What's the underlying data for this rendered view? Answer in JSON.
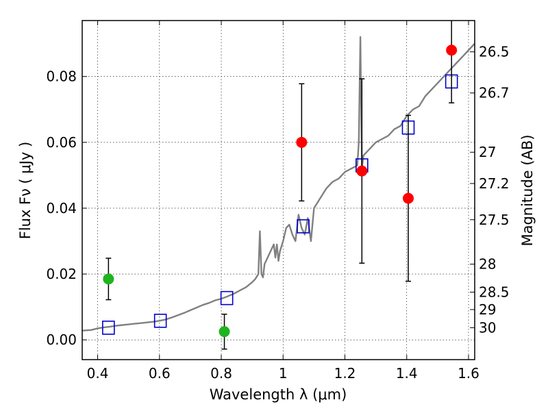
{
  "chart_data": {
    "type": "scatter",
    "xlabel": "Wavelength  λ (μm)",
    "ylabel": "Flux  Fν  ( μJy )",
    "ylabel_right": "Magnitude (AB)",
    "xlim": [
      0.35,
      1.62
    ],
    "ylim": [
      -0.006,
      0.097
    ],
    "grid": true,
    "x_ticks": [
      0.4,
      0.6,
      0.8,
      1.0,
      1.2,
      1.4,
      1.6
    ],
    "x_tick_labels": [
      "0.4",
      "0.6",
      "0.8",
      "1",
      "1.2",
      "1.4",
      "1.6"
    ],
    "y_ticks": [
      0.0,
      0.02,
      0.04,
      0.06,
      0.08
    ],
    "y_tick_labels": [
      "0.00",
      "0.02",
      "0.04",
      "0.06",
      "0.08"
    ],
    "right_ticks": [
      {
        "label": "26.5",
        "flux": 0.0875
      },
      {
        "label": "26.7",
        "flux": 0.075
      },
      {
        "label": "27",
        "flux": 0.057
      },
      {
        "label": "27.2",
        "flux": 0.0475
      },
      {
        "label": "27.5",
        "flux": 0.0365
      },
      {
        "label": "28",
        "flux": 0.023
      },
      {
        "label": "28.5",
        "flux": 0.0145
      },
      {
        "label": "29",
        "flux": 0.0092
      },
      {
        "label": "30",
        "flux": 0.0037
      }
    ],
    "series": [
      {
        "kind": "line",
        "color": "#808080",
        "x": [
          0.35,
          0.38,
          0.4,
          0.42,
          0.44,
          0.46,
          0.48,
          0.5,
          0.52,
          0.54,
          0.56,
          0.58,
          0.6,
          0.62,
          0.64,
          0.66,
          0.68,
          0.7,
          0.72,
          0.74,
          0.76,
          0.78,
          0.8,
          0.82,
          0.84,
          0.86,
          0.88,
          0.9,
          0.91,
          0.92,
          0.925,
          0.93,
          0.935,
          0.94,
          0.95,
          0.96,
          0.97,
          0.975,
          0.98,
          0.985,
          0.99,
          1.0,
          1.01,
          1.02,
          1.03,
          1.04,
          1.05,
          1.06,
          1.07,
          1.08,
          1.09,
          1.1,
          1.12,
          1.14,
          1.16,
          1.18,
          1.2,
          1.22,
          1.24,
          1.245,
          1.25,
          1.255,
          1.26,
          1.27,
          1.28,
          1.3,
          1.32,
          1.34,
          1.36,
          1.38,
          1.4,
          1.42,
          1.44,
          1.46,
          1.48,
          1.5,
          1.52,
          1.54,
          1.56,
          1.58,
          1.6,
          1.62
        ],
        "y": [
          0.0028,
          0.003,
          0.0035,
          0.0038,
          0.004,
          0.0043,
          0.0045,
          0.0047,
          0.0049,
          0.0051,
          0.0053,
          0.0055,
          0.0058,
          0.0062,
          0.0068,
          0.0075,
          0.0082,
          0.009,
          0.0098,
          0.0106,
          0.0112,
          0.012,
          0.0125,
          0.0132,
          0.014,
          0.015,
          0.016,
          0.0175,
          0.0185,
          0.02,
          0.033,
          0.02,
          0.019,
          0.023,
          0.025,
          0.027,
          0.029,
          0.025,
          0.029,
          0.024,
          0.027,
          0.03,
          0.034,
          0.035,
          0.032,
          0.03,
          0.038,
          0.034,
          0.032,
          0.037,
          0.03,
          0.04,
          0.043,
          0.046,
          0.048,
          0.049,
          0.051,
          0.052,
          0.053,
          0.06,
          0.092,
          0.052,
          0.056,
          0.057,
          0.058,
          0.06,
          0.061,
          0.062,
          0.064,
          0.065,
          0.068,
          0.07,
          0.071,
          0.074,
          0.076,
          0.078,
          0.08,
          0.082,
          0.084,
          0.086,
          0.088,
          0.09
        ]
      },
      {
        "kind": "squares",
        "color": "#0000cc",
        "x": [
          0.435,
          0.603,
          0.818,
          1.065,
          1.255,
          1.405,
          1.545
        ],
        "y": [
          0.0037,
          0.0058,
          0.0127,
          0.0345,
          0.053,
          0.0645,
          0.0785
        ]
      },
      {
        "kind": "circles",
        "color": "#1fb31f",
        "x": [
          0.435,
          0.81
        ],
        "y": [
          0.0185,
          0.0025
        ],
        "err": [
          0.0063,
          0.0053
        ]
      },
      {
        "kind": "circles",
        "color": "#ff0000",
        "x": [
          1.06,
          1.255,
          1.405,
          1.545
        ],
        "y": [
          0.06,
          0.0513,
          0.043,
          0.088
        ],
        "err": [
          0.0178,
          0.028,
          0.0252,
          0.016
        ]
      }
    ]
  }
}
